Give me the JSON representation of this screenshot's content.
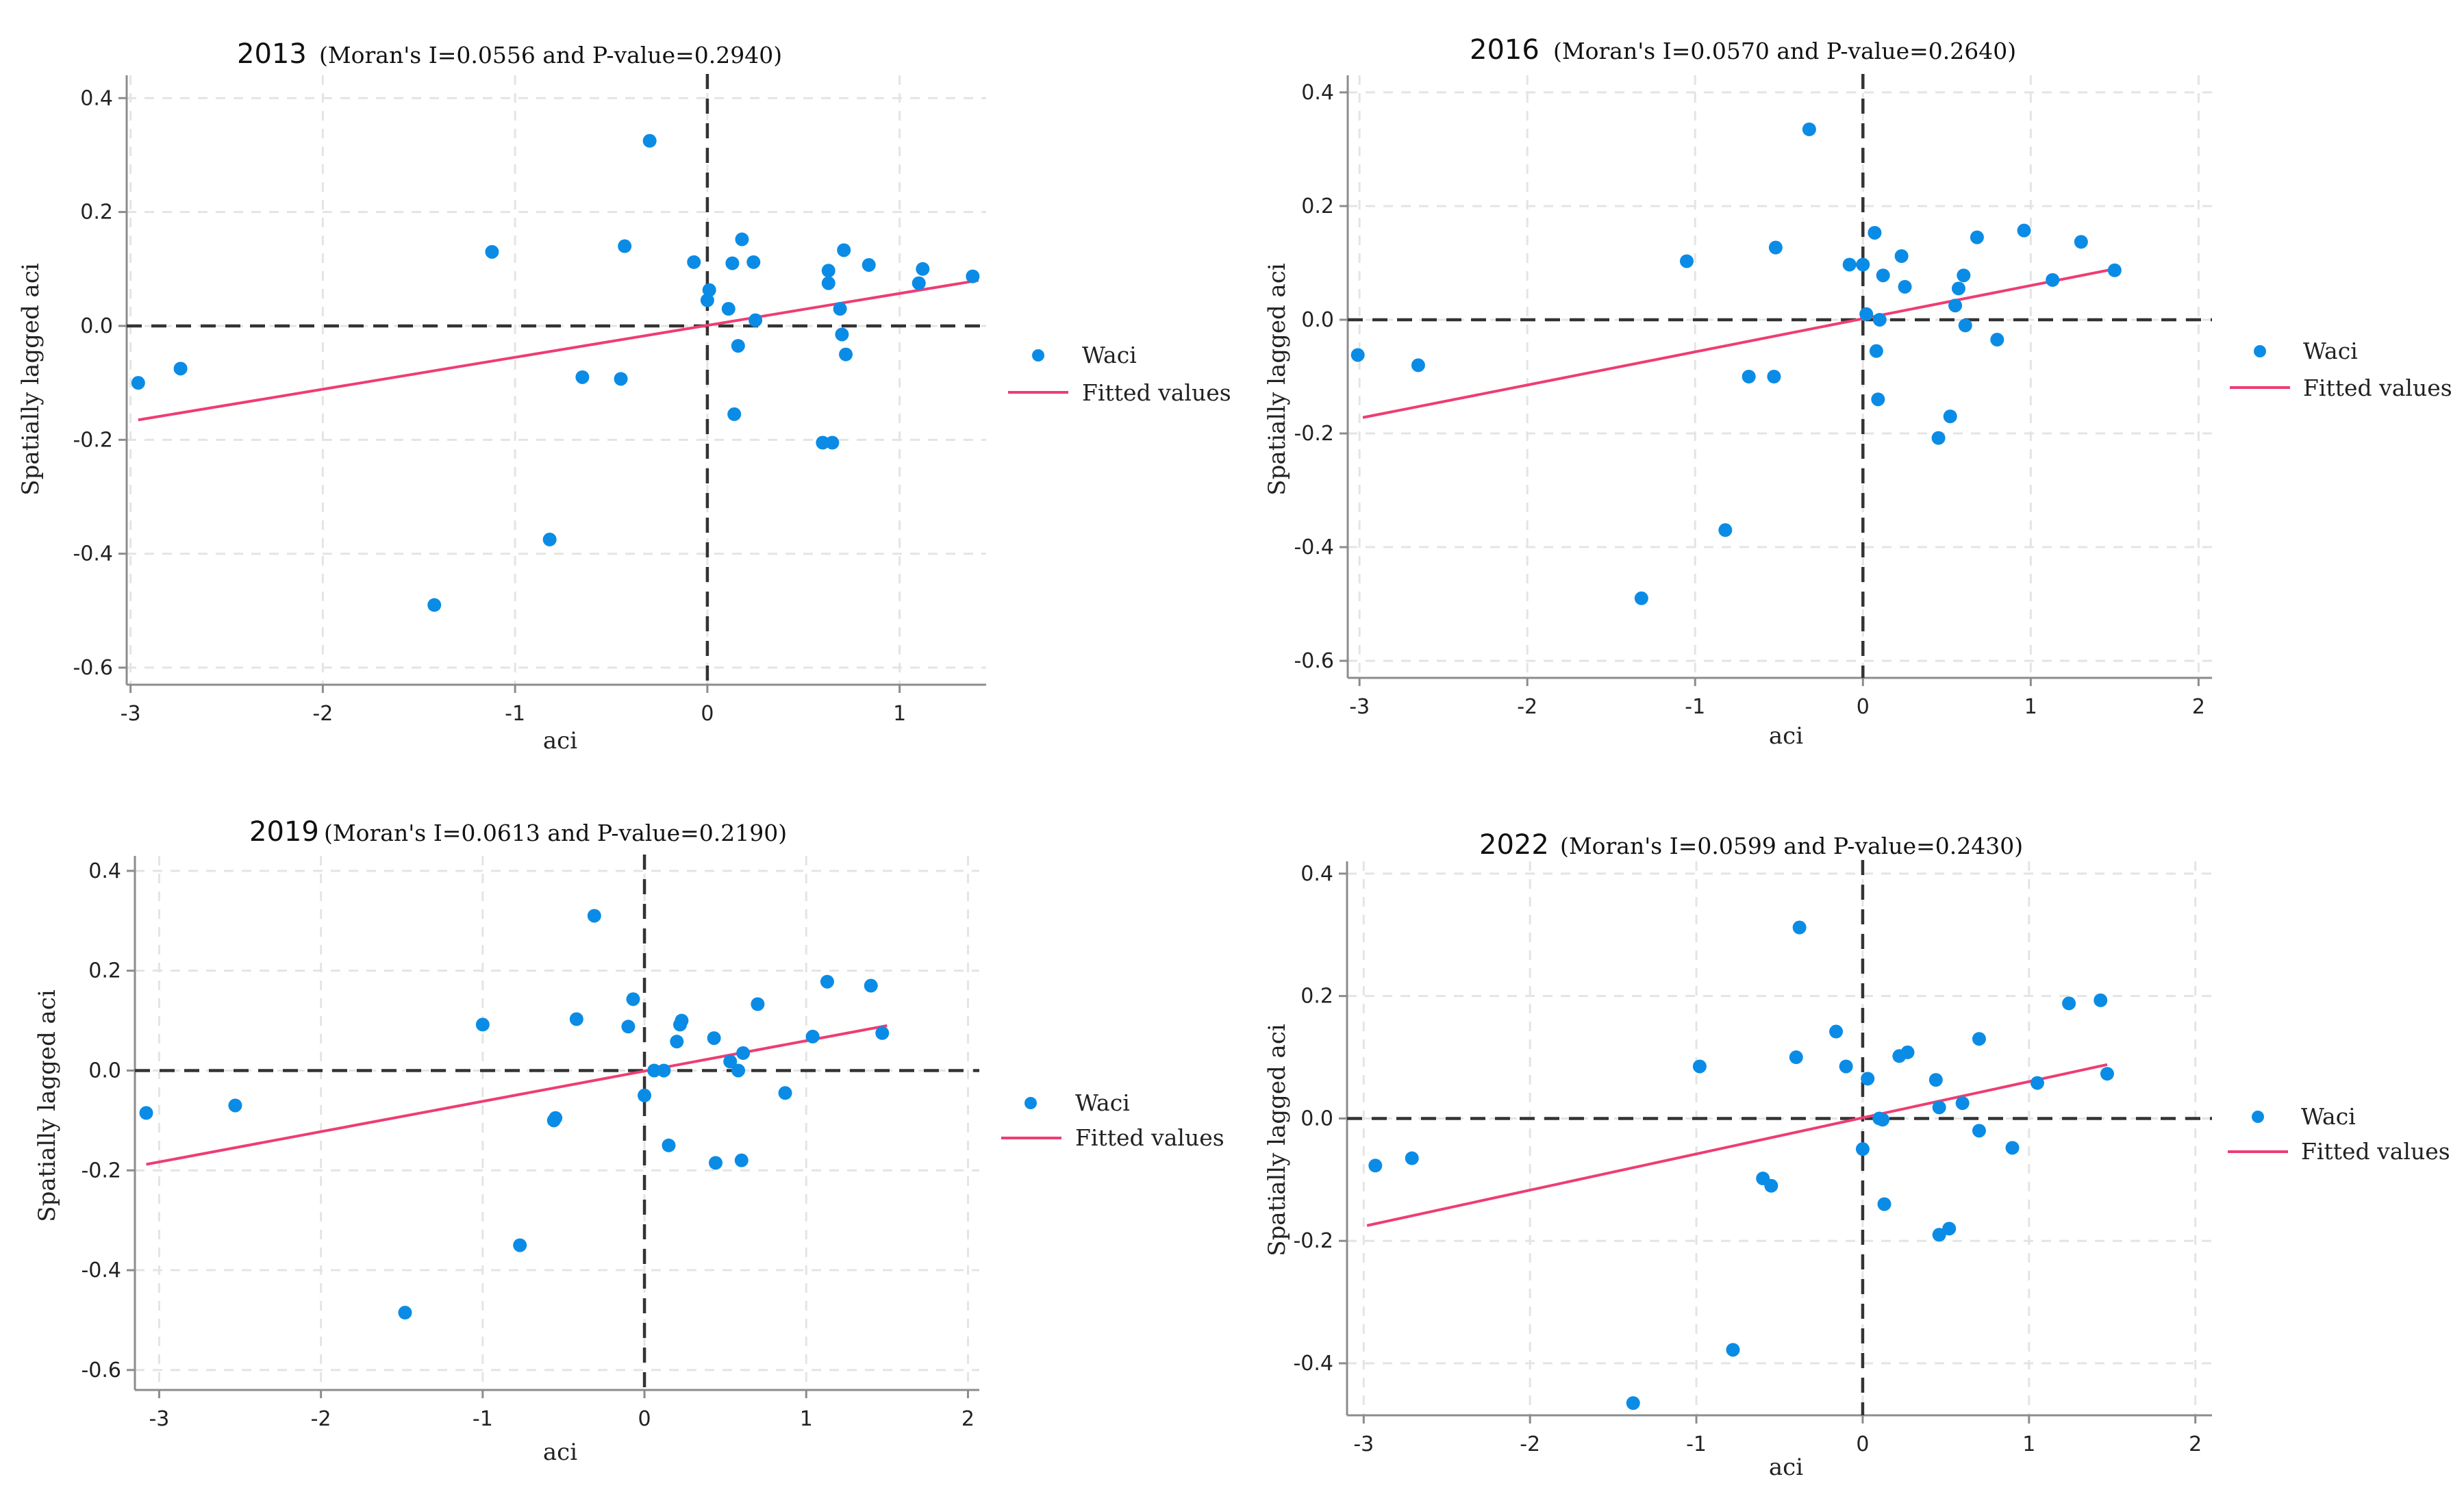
{
  "chart_data": [
    {
      "type": "scatter",
      "year": "2013",
      "subtitle": "(Moran's I=0.0556 and P-value=0.2940)",
      "xlabel": "aci",
      "ylabel": "Spatially lagged aci",
      "xlim": [
        -3.02,
        1.45
      ],
      "ylim": [
        -0.63,
        0.44
      ],
      "xticks": [
        -3,
        -2,
        -1,
        0,
        1
      ],
      "yticks": [
        -0.6,
        -0.4,
        -0.2,
        0,
        0.2,
        0.4
      ],
      "grid": true,
      "legend_position": "right",
      "legend": {
        "points": "Waci",
        "line": "Fitted values"
      },
      "fitted_line": {
        "x": [
          -2.96,
          1.41
        ],
        "y": [
          -0.165,
          0.08
        ]
      },
      "points": {
        "x": [
          -2.96,
          -2.74,
          -1.42,
          -1.12,
          -0.82,
          -0.65,
          -0.45,
          -0.43,
          -0.3,
          -0.07,
          0.0,
          0.01,
          0.11,
          0.13,
          0.14,
          0.16,
          0.18,
          0.24,
          0.25,
          0.6,
          0.63,
          0.63,
          0.65,
          0.69,
          0.7,
          0.71,
          0.72,
          0.84,
          1.1,
          1.12,
          1.38
        ],
        "y": [
          -0.1,
          -0.075,
          -0.49,
          0.13,
          -0.375,
          -0.09,
          -0.093,
          0.14,
          0.325,
          0.112,
          0.045,
          0.063,
          0.03,
          0.11,
          -0.155,
          -0.035,
          0.152,
          0.112,
          0.01,
          -0.205,
          0.097,
          0.075,
          -0.205,
          0.03,
          -0.015,
          0.133,
          -0.05,
          0.107,
          0.075,
          0.1,
          0.087
        ]
      }
    },
    {
      "type": "scatter",
      "year": "2016",
      "subtitle": "(Moran's I=0.0570 and P-value=0.2640)",
      "xlabel": "aci",
      "ylabel": "Spatially lagged aci",
      "xlim": [
        -3.07,
        2.08
      ],
      "ylim": [
        -0.63,
        0.43
      ],
      "xticks": [
        -3,
        -2,
        -1,
        0,
        1,
        2
      ],
      "yticks": [
        -0.6,
        -0.4,
        -0.2,
        0,
        0.2,
        0.4
      ],
      "grid": true,
      "legend_position": "right",
      "legend": {
        "points": "Waci",
        "line": "Fitted values"
      },
      "fitted_line": {
        "x": [
          -2.98,
          1.51
        ],
        "y": [
          -0.172,
          0.09
        ]
      },
      "points": {
        "x": [
          -3.01,
          -2.65,
          -1.32,
          -1.05,
          -0.82,
          -0.68,
          -0.53,
          -0.52,
          -0.32,
          -0.08,
          0.0,
          0.02,
          0.07,
          0.08,
          0.09,
          0.1,
          0.12,
          0.23,
          0.25,
          0.45,
          0.52,
          0.55,
          0.57,
          0.6,
          0.61,
          0.68,
          0.8,
          0.96,
          1.13,
          1.3,
          1.5
        ],
        "y": [
          -0.062,
          -0.08,
          -0.49,
          0.103,
          -0.37,
          -0.1,
          -0.1,
          0.127,
          0.335,
          0.097,
          0.097,
          0.01,
          0.153,
          -0.055,
          -0.14,
          0.0,
          0.078,
          0.112,
          0.058,
          -0.208,
          -0.17,
          0.025,
          0.055,
          0.078,
          -0.01,
          0.145,
          -0.035,
          0.157,
          0.07,
          0.137,
          0.087
        ]
      }
    },
    {
      "type": "scatter",
      "year": "2019",
      "subtitle": "(Moran's I=0.0613 and P-value=0.2190)",
      "xlabel": "aci",
      "ylabel": "Spatially lagged aci",
      "xlim": [
        -3.15,
        2.07
      ],
      "ylim": [
        -0.64,
        0.43
      ],
      "xticks": [
        -3,
        -2,
        -1,
        0,
        1,
        2
      ],
      "yticks": [
        -0.6,
        -0.4,
        -0.2,
        0,
        0.2,
        0.4
      ],
      "grid": true,
      "legend_position": "right",
      "legend": {
        "points": "Waci",
        "line": "Fitted values"
      },
      "fitted_line": {
        "x": [
          -3.08,
          1.5
        ],
        "y": [
          -0.188,
          0.09
        ]
      },
      "points": {
        "x": [
          -3.08,
          -2.53,
          -1.48,
          -1.0,
          -0.77,
          -0.56,
          -0.55,
          -0.42,
          -0.31,
          -0.1,
          -0.07,
          0.0,
          0.06,
          0.12,
          0.15,
          0.2,
          0.22,
          0.23,
          0.43,
          0.44,
          0.53,
          0.58,
          0.6,
          0.61,
          0.7,
          0.87,
          1.04,
          1.13,
          1.4,
          1.47
        ],
        "y": [
          -0.085,
          -0.07,
          -0.485,
          0.092,
          -0.35,
          -0.1,
          -0.095,
          0.103,
          0.31,
          0.088,
          0.143,
          -0.05,
          0.0,
          0.0,
          -0.15,
          0.058,
          0.092,
          0.1,
          0.065,
          -0.185,
          0.018,
          0.0,
          -0.18,
          0.035,
          0.133,
          -0.045,
          0.068,
          0.178,
          0.17,
          0.075
        ]
      }
    },
    {
      "type": "scatter",
      "year": "2022",
      "subtitle": "(Moran's I=0.0599 and P-value=0.2430)",
      "xlabel": "aci",
      "ylabel": "Spatially lagged aci",
      "xlim": [
        -3.1,
        2.1
      ],
      "ylim": [
        -0.485,
        0.42
      ],
      "xticks": [
        -3,
        -2,
        -1,
        0,
        1,
        2
      ],
      "yticks": [
        -0.4,
        -0.2,
        0,
        0.2,
        0.4
      ],
      "grid": true,
      "legend_position": "right",
      "legend": {
        "points": "Waci",
        "line": "Fitted values"
      },
      "fitted_line": {
        "x": [
          -2.98,
          1.47
        ],
        "y": [
          -0.175,
          0.088
        ]
      },
      "points": {
        "x": [
          -2.93,
          -2.71,
          -1.38,
          -0.98,
          -0.78,
          -0.6,
          -0.55,
          -0.4,
          -0.38,
          -0.16,
          -0.1,
          0.0,
          0.03,
          0.1,
          0.12,
          0.13,
          0.22,
          0.27,
          0.44,
          0.46,
          0.46,
          0.52,
          0.6,
          0.7,
          0.7,
          0.9,
          1.05,
          1.24,
          1.43,
          1.47
        ],
        "y": [
          -0.077,
          -0.065,
          -0.465,
          0.085,
          -0.378,
          -0.098,
          -0.11,
          0.1,
          0.312,
          0.142,
          0.085,
          -0.05,
          0.065,
          0.0,
          -0.002,
          -0.14,
          0.102,
          0.108,
          0.063,
          -0.19,
          0.018,
          -0.18,
          0.025,
          0.13,
          -0.02,
          -0.048,
          0.058,
          0.188,
          0.193,
          0.073
        ]
      }
    }
  ],
  "colors": {
    "points": "#0a8ce6",
    "fitted_line": "#ee3d73",
    "reference_lines": "#333333"
  }
}
